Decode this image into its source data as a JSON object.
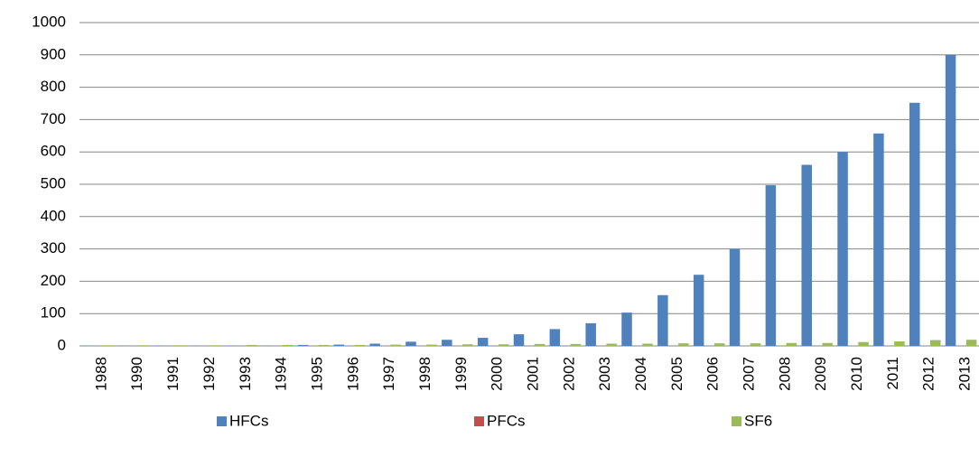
{
  "chart_data": {
    "type": "bar",
    "categories": [
      "1988",
      "1990",
      "1991",
      "1992",
      "1993",
      "1994",
      "1995",
      "1996",
      "1997",
      "1998",
      "1999",
      "2000",
      "2001",
      "2002",
      "2003",
      "2004",
      "2005",
      "2006",
      "2007",
      "2008",
      "2009",
      "2010",
      "2011",
      "2012",
      "2013"
    ],
    "series": [
      {
        "name": "HFCs",
        "color": "#4f81bd",
        "values": [
          1,
          1,
          1,
          1,
          1,
          1,
          3,
          4,
          7,
          13,
          19,
          25,
          36,
          52,
          70,
          103,
          157,
          220,
          300,
          497,
          560,
          600,
          657,
          752,
          900
        ]
      },
      {
        "name": "PFCs",
        "color": "#c0504d",
        "values": [
          0,
          0,
          0,
          0,
          0,
          0,
          0,
          0,
          0,
          0,
          0,
          0,
          0,
          0,
          0,
          0,
          0,
          0,
          0,
          0,
          0,
          0,
          0,
          0,
          0
        ]
      },
      {
        "name": "SF6",
        "color": "#9bbb59",
        "values": [
          2,
          2,
          2,
          2,
          3,
          3,
          3,
          3,
          4,
          4,
          5,
          5,
          6,
          6,
          7,
          7,
          8,
          8,
          8,
          9,
          9,
          12,
          14,
          18,
          19
        ]
      }
    ],
    "ylim": [
      0,
      1000
    ],
    "yticks": [
      0,
      100,
      200,
      300,
      400,
      500,
      600,
      700,
      800,
      900,
      1000
    ],
    "grid": true,
    "legend": "bottom"
  }
}
